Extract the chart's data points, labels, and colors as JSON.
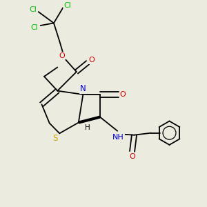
{
  "bg_color": "#ebebdf",
  "atom_colors": {
    "C": "#000000",
    "N": "#0000cc",
    "O": "#cc0000",
    "S": "#ccaa00",
    "Cl": "#00bb00",
    "H": "#000000"
  },
  "bond_color": "#000000"
}
